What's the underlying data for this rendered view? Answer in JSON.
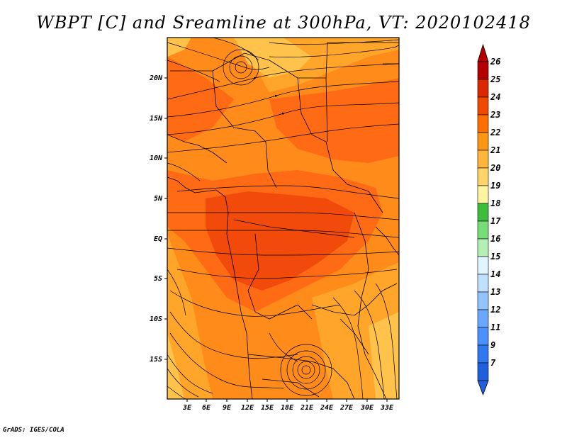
{
  "title": "WBPT [C] and Sreamline at 300hPa, VT: 2020102418",
  "footer": "GrADS: IGES/COLA",
  "map": {
    "lat_labels": [
      "20N",
      "15N",
      "10N",
      "5N",
      "EQ",
      "5S",
      "10S",
      "15S"
    ],
    "lon_labels": [
      "3E",
      "6E",
      "9E",
      "12E",
      "15E",
      "18E",
      "21E",
      "24E",
      "27E",
      "30E",
      "33E"
    ],
    "lat_range": [
      -19.5,
      24.5
    ],
    "lon_range": [
      0,
      35
    ]
  },
  "colorbar": {
    "labels": [
      "7",
      "9",
      "11",
      "12",
      "13",
      "14",
      "15",
      "16",
      "17",
      "18",
      "19",
      "20",
      "21",
      "22",
      "23",
      "24",
      "25",
      "26"
    ],
    "colors": [
      "#1f5fdc",
      "#2f78f0",
      "#4a90ff",
      "#6aa8ff",
      "#94c4ff",
      "#bfe0ff",
      "#e0f5ff",
      "#b4f0b4",
      "#78dc78",
      "#3cbe3c",
      "#fff5a0",
      "#ffd46a",
      "#ffb43c",
      "#ff9614",
      "#ff6e00",
      "#f04a00",
      "#dc2800",
      "#b40000"
    ],
    "min_color": "#1f5fdc",
    "max_color": "#b40000"
  },
  "colors": {
    "field_base": "#ff8c1a",
    "field_warm": "#ff6a14",
    "field_hot": "#f24a0a",
    "field_cool": "#ffa52a",
    "field_coolest": "#ffc24a"
  }
}
